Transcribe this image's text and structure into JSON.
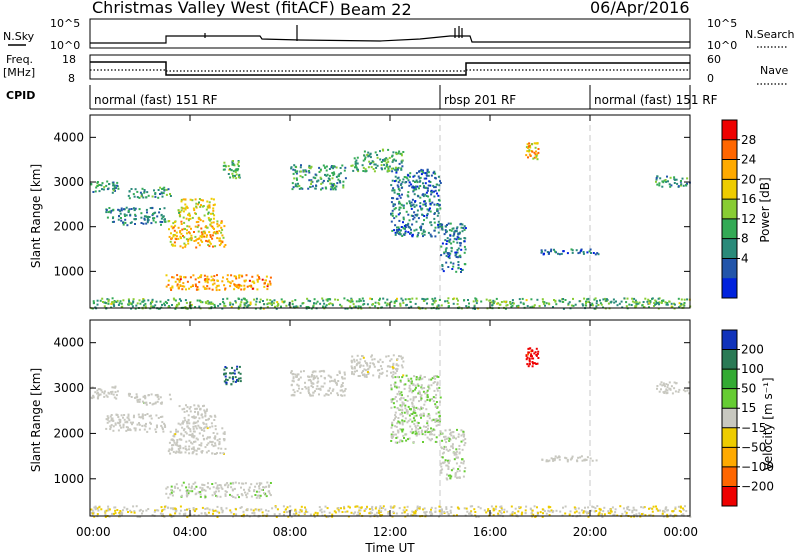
{
  "header": {
    "station": "Christmas Valley West (fitACF)",
    "beam": "Beam 22",
    "date": "06/Apr/2016"
  },
  "status_panels": {
    "nsky_label": "N.Sky",
    "nsky_ticks": [
      "10^5",
      "10^0"
    ],
    "nsearch_label": "N.Search",
    "nsearch_ticks": [
      "10^5",
      "10^0"
    ],
    "freq_label": "Freq.",
    "freq_unit": "[MHz]",
    "freq_ticks": [
      "18",
      "8"
    ],
    "nave_label": "Nave",
    "nave_ticks": [
      "60",
      "0"
    ],
    "cpid_label": "CPID"
  },
  "cpid_segments": [
    {
      "label": "normal (fast) 151 RF",
      "start_h": 0,
      "end_h": 14
    },
    {
      "label": "rbsp 201 RF",
      "start_h": 14,
      "end_h": 20
    },
    {
      "label": "normal (fast) 151 RF",
      "start_h": 20,
      "end_h": 24
    }
  ],
  "power_panel": {
    "ylabel": "Slant Range [km]",
    "colorbar_label": "Power [dB]",
    "colorbar_ticks": [
      "28",
      "24",
      "20",
      "16",
      "12",
      "8",
      "4"
    ],
    "colors": [
      "#ee0000",
      "#ff6600",
      "#ffaa00",
      "#eecc00",
      "#88cc33",
      "#33aa55",
      "#2a8a7a",
      "#2255aa",
      "#0022dd"
    ]
  },
  "velocity_panel": {
    "ylabel": "Slant Range [km]",
    "colorbar_label": "Velocity [m s⁻¹]",
    "colorbar_ticks": [
      "200",
      "100",
      "50",
      "15",
      "−15",
      "−50",
      "−100",
      "−200"
    ],
    "colors": [
      "#1133bb",
      "#2a7a55",
      "#33aa33",
      "#66cc33",
      "#c8c8c0",
      "#eecc00",
      "#ffaa00",
      "#ff6600",
      "#ee0000"
    ]
  },
  "y_ticks": [
    "4000",
    "3000",
    "2000",
    "1000"
  ],
  "x_ticks": [
    "00:00",
    "04:00",
    "08:00",
    "12:00",
    "16:00",
    "20:00",
    "00:00"
  ],
  "xlabel": "Time UT",
  "chart_data": {
    "type": "heatmap",
    "title": "Christmas Valley West (fitACF) Beam 22 06/Apr/2016",
    "xlabel": "Time UT",
    "ylabel": "Slant Range [km]",
    "xlim": [
      0,
      24
    ],
    "ylim": [
      180,
      4500
    ],
    "series": [
      {
        "name": "Power [dB]",
        "clim": [
          0,
          30
        ]
      },
      {
        "name": "Velocity [m s⁻¹]",
        "clim": [
          -250,
          250
        ]
      }
    ],
    "regions": [
      {
        "t": [
          0.0,
          1.1
        ],
        "r": [
          2780,
          3060
        ],
        "power": 10,
        "velocity": 0
      },
      {
        "t": [
          0.6,
          3.0
        ],
        "r": [
          2050,
          2450
        ],
        "power": 8,
        "velocity": 0
      },
      {
        "t": [
          1.5,
          3.2
        ],
        "r": [
          2650,
          2900
        ],
        "power": 10,
        "velocity": 5
      },
      {
        "t": [
          3.1,
          5.4
        ],
        "r": [
          1550,
          2150
        ],
        "power": 20,
        "velocity": -5
      },
      {
        "t": [
          3.5,
          5.0
        ],
        "r": [
          2150,
          2650
        ],
        "power": 18,
        "velocity": 0
      },
      {
        "t": [
          3.0,
          7.2
        ],
        "r": [
          600,
          940
        ],
        "power": 22,
        "velocity": 10
      },
      {
        "t": [
          5.3,
          6.0
        ],
        "r": [
          3100,
          3500
        ],
        "power": 12,
        "velocity": 180
      },
      {
        "t": [
          8.0,
          10.2
        ],
        "r": [
          2850,
          3400
        ],
        "power": 10,
        "velocity": 0
      },
      {
        "t": [
          10.4,
          12.5
        ],
        "r": [
          3250,
          3750
        ],
        "power": 11,
        "velocity": -5
      },
      {
        "t": [
          12.0,
          14.0
        ],
        "r": [
          1800,
          3300
        ],
        "power": 7,
        "velocity": 20
      },
      {
        "t": [
          14.0,
          15.0
        ],
        "r": [
          1000,
          2100
        ],
        "power": 7,
        "velocity": 10
      },
      {
        "t": [
          17.4,
          17.9
        ],
        "r": [
          3500,
          3900
        ],
        "power": 20,
        "velocity": -220
      },
      {
        "t": [
          18.0,
          20.3
        ],
        "r": [
          1400,
          1520
        ],
        "power": 6,
        "velocity": 0
      },
      {
        "t": [
          22.6,
          24.0
        ],
        "r": [
          2900,
          3150
        ],
        "power": 10,
        "velocity": 0
      },
      {
        "t": [
          0.0,
          24.0
        ],
        "r": [
          180,
          420
        ],
        "power": 12,
        "velocity": -20
      }
    ]
  }
}
